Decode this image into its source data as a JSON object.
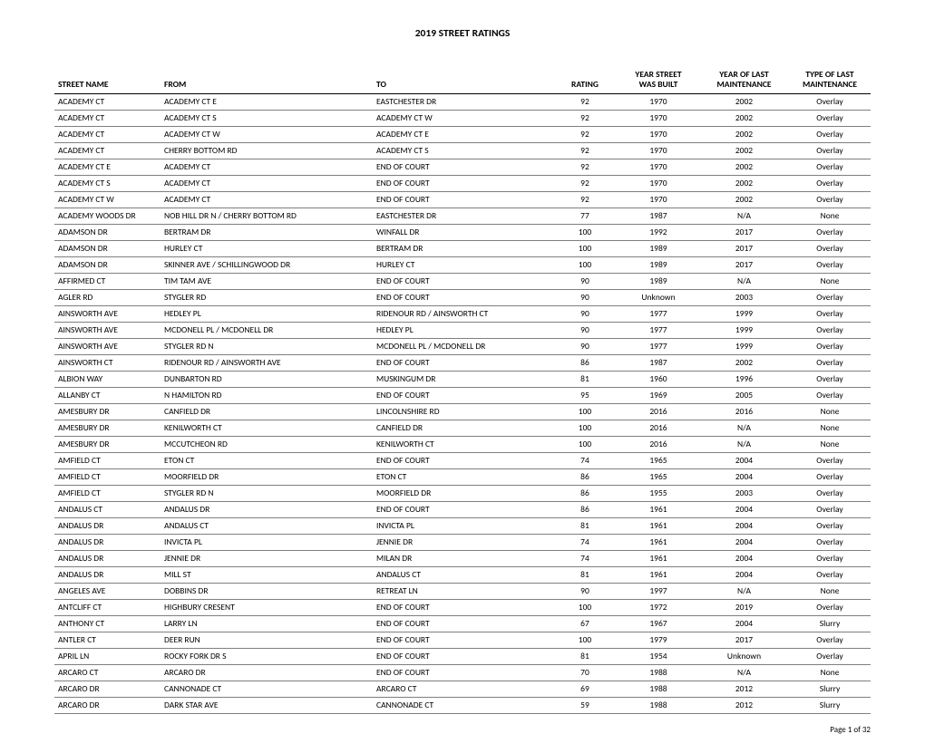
{
  "title": "2019 STREET RATINGS",
  "footer": "Page 1 of 32",
  "columns": [
    {
      "label": "STREET NAME",
      "align": "left"
    },
    {
      "label": "FROM",
      "align": "left"
    },
    {
      "label": "TO",
      "align": "left"
    },
    {
      "label": "RATING",
      "align": "center"
    },
    {
      "label": "YEAR STREET\nWAS BUILT",
      "align": "center"
    },
    {
      "label": "YEAR OF LAST\nMAINTENANCE",
      "align": "center"
    },
    {
      "label": "TYPE OF LAST\nMAINTENANCE",
      "align": "center"
    }
  ],
  "rows": [
    [
      "ACADEMY CT",
      "ACADEMY CT E",
      "EASTCHESTER DR",
      "92",
      "1970",
      "2002",
      "Overlay"
    ],
    [
      "ACADEMY CT",
      "ACADEMY CT S",
      "ACADEMY CT W",
      "92",
      "1970",
      "2002",
      "Overlay"
    ],
    [
      "ACADEMY CT",
      "ACADEMY CT W",
      "ACADEMY CT E",
      "92",
      "1970",
      "2002",
      "Overlay"
    ],
    [
      "ACADEMY CT",
      "CHERRY BOTTOM RD",
      "ACADEMY CT S",
      "92",
      "1970",
      "2002",
      "Overlay"
    ],
    [
      "ACADEMY CT E",
      "ACADEMY CT",
      "END OF COURT",
      "92",
      "1970",
      "2002",
      "Overlay"
    ],
    [
      "ACADEMY CT S",
      "ACADEMY CT",
      "END OF COURT",
      "92",
      "1970",
      "2002",
      "Overlay"
    ],
    [
      "ACADEMY CT W",
      "ACADEMY CT",
      "END OF COURT",
      "92",
      "1970",
      "2002",
      "Overlay"
    ],
    [
      "ACADEMY WOODS DR",
      "NOB HILL DR N / CHERRY BOTTOM RD",
      "EASTCHESTER DR",
      "77",
      "1987",
      "N/A",
      "None"
    ],
    [
      "ADAMSON DR",
      "BERTRAM DR",
      "WINFALL DR",
      "100",
      "1992",
      "2017",
      "Overlay"
    ],
    [
      "ADAMSON DR",
      "HURLEY CT",
      "BERTRAM DR",
      "100",
      "1989",
      "2017",
      "Overlay"
    ],
    [
      "ADAMSON DR",
      "SKINNER AVE / SCHILLINGWOOD DR",
      "HURLEY CT",
      "100",
      "1989",
      "2017",
      "Overlay"
    ],
    [
      "AFFIRMED CT",
      "TIM TAM AVE",
      "END OF COURT",
      "90",
      "1989",
      "N/A",
      "None"
    ],
    [
      "AGLER RD",
      "STYGLER RD",
      "END OF COURT",
      "90",
      "Unknown",
      "2003",
      "Overlay"
    ],
    [
      "AINSWORTH AVE",
      "HEDLEY PL",
      "RIDENOUR RD / AINSWORTH CT",
      "90",
      "1977",
      "1999",
      "Overlay"
    ],
    [
      "AINSWORTH AVE",
      "MCDONELL PL / MCDONELL DR",
      "HEDLEY PL",
      "90",
      "1977",
      "1999",
      "Overlay"
    ],
    [
      "AINSWORTH AVE",
      "STYGLER RD N",
      "MCDONELL PL / MCDONELL DR",
      "90",
      "1977",
      "1999",
      "Overlay"
    ],
    [
      "AINSWORTH CT",
      "RIDENOUR RD / AINSWORTH AVE",
      "END OF COURT",
      "86",
      "1987",
      "2002",
      "Overlay"
    ],
    [
      "ALBION WAY",
      "DUNBARTON RD",
      "MUSKINGUM DR",
      "81",
      "1960",
      "1996",
      "Overlay"
    ],
    [
      "ALLANBY CT",
      "N HAMILTON RD",
      "END OF COURT",
      "95",
      "1969",
      "2005",
      "Overlay"
    ],
    [
      "AMESBURY DR",
      "CANFIELD DR",
      "LINCOLNSHIRE RD",
      "100",
      "2016",
      "2016",
      "None"
    ],
    [
      "AMESBURY DR",
      "KENILWORTH CT",
      "CANFIELD DR",
      "100",
      "2016",
      "N/A",
      "None"
    ],
    [
      "AMESBURY DR",
      "MCCUTCHEON RD",
      "KENILWORTH CT",
      "100",
      "2016",
      "N/A",
      "None"
    ],
    [
      "AMFIELD CT",
      "ETON CT",
      "END OF COURT",
      "74",
      "1965",
      "2004",
      "Overlay"
    ],
    [
      "AMFIELD CT",
      "MOORFIELD DR",
      "ETON CT",
      "86",
      "1965",
      "2004",
      "Overlay"
    ],
    [
      "AMFIELD CT",
      "STYGLER RD N",
      "MOORFIELD DR",
      "86",
      "1955",
      "2003",
      "Overlay"
    ],
    [
      "ANDALUS CT",
      "ANDALUS DR",
      "END OF COURT",
      "86",
      "1961",
      "2004",
      "Overlay"
    ],
    [
      "ANDALUS DR",
      "ANDALUS CT",
      "INVICTA PL",
      "81",
      "1961",
      "2004",
      "Overlay"
    ],
    [
      "ANDALUS DR",
      "INVICTA PL",
      "JENNIE DR",
      "74",
      "1961",
      "2004",
      "Overlay"
    ],
    [
      "ANDALUS DR",
      "JENNIE DR",
      "MILAN DR",
      "74",
      "1961",
      "2004",
      "Overlay"
    ],
    [
      "ANDALUS DR",
      "MILL ST",
      "ANDALUS CT",
      "81",
      "1961",
      "2004",
      "Overlay"
    ],
    [
      "ANGELES AVE",
      "DOBBINS DR",
      "RETREAT LN",
      "90",
      "1997",
      "N/A",
      "None"
    ],
    [
      "ANTCLIFF CT",
      "HIGHBURY CRESENT",
      "END OF COURT",
      "100",
      "1972",
      "2019",
      "Overlay"
    ],
    [
      "ANTHONY CT",
      "LARRY LN",
      "END OF COURT",
      "67",
      "1967",
      "2004",
      "Slurry"
    ],
    [
      "ANTLER CT",
      "DEER RUN",
      "END OF COURT",
      "100",
      "1979",
      "2017",
      "Overlay"
    ],
    [
      "APRIL LN",
      "ROCKY FORK DR S",
      "END OF COURT",
      "81",
      "1954",
      "Unknown",
      "Overlay"
    ],
    [
      "ARCARO CT",
      "ARCARO DR",
      "END OF COURT",
      "70",
      "1988",
      "N/A",
      "None"
    ],
    [
      "ARCARO DR",
      "CANNONADE CT",
      "ARCARO CT",
      "69",
      "1988",
      "2012",
      "Slurry"
    ],
    [
      "ARCARO DR",
      "DARK STAR AVE",
      "CANNONADE CT",
      "59",
      "1988",
      "2012",
      "Slurry"
    ]
  ]
}
